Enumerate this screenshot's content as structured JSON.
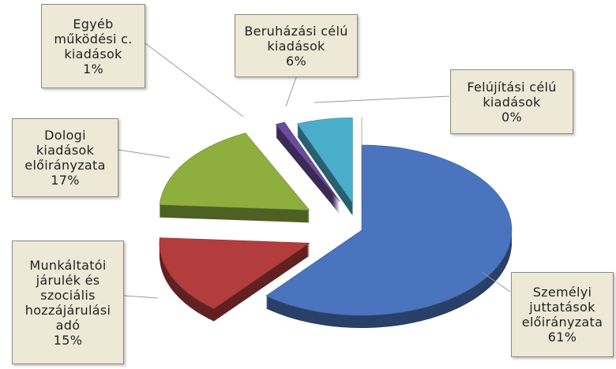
{
  "chart_data": {
    "type": "pie",
    "categories": [
      "Személyi juttatások előirányzata",
      "Munkáltatói járulék és szociális hozzájárulási adó",
      "Dologi kiadások előirányzata",
      "Egyéb működési c. kiadások",
      "Beruházási célú kiadások",
      "Felújítási célú kiadások"
    ],
    "values": [
      61,
      15,
      17,
      1,
      6,
      0
    ],
    "value_labels": [
      "61%",
      "15%",
      "17%",
      "1%",
      "6%",
      "0%"
    ],
    "colors": [
      "#4a74bd",
      "#b33c3c",
      "#8eae3e",
      "#6b4c9c",
      "#4aaecb",
      "#e08a30"
    ]
  }
}
